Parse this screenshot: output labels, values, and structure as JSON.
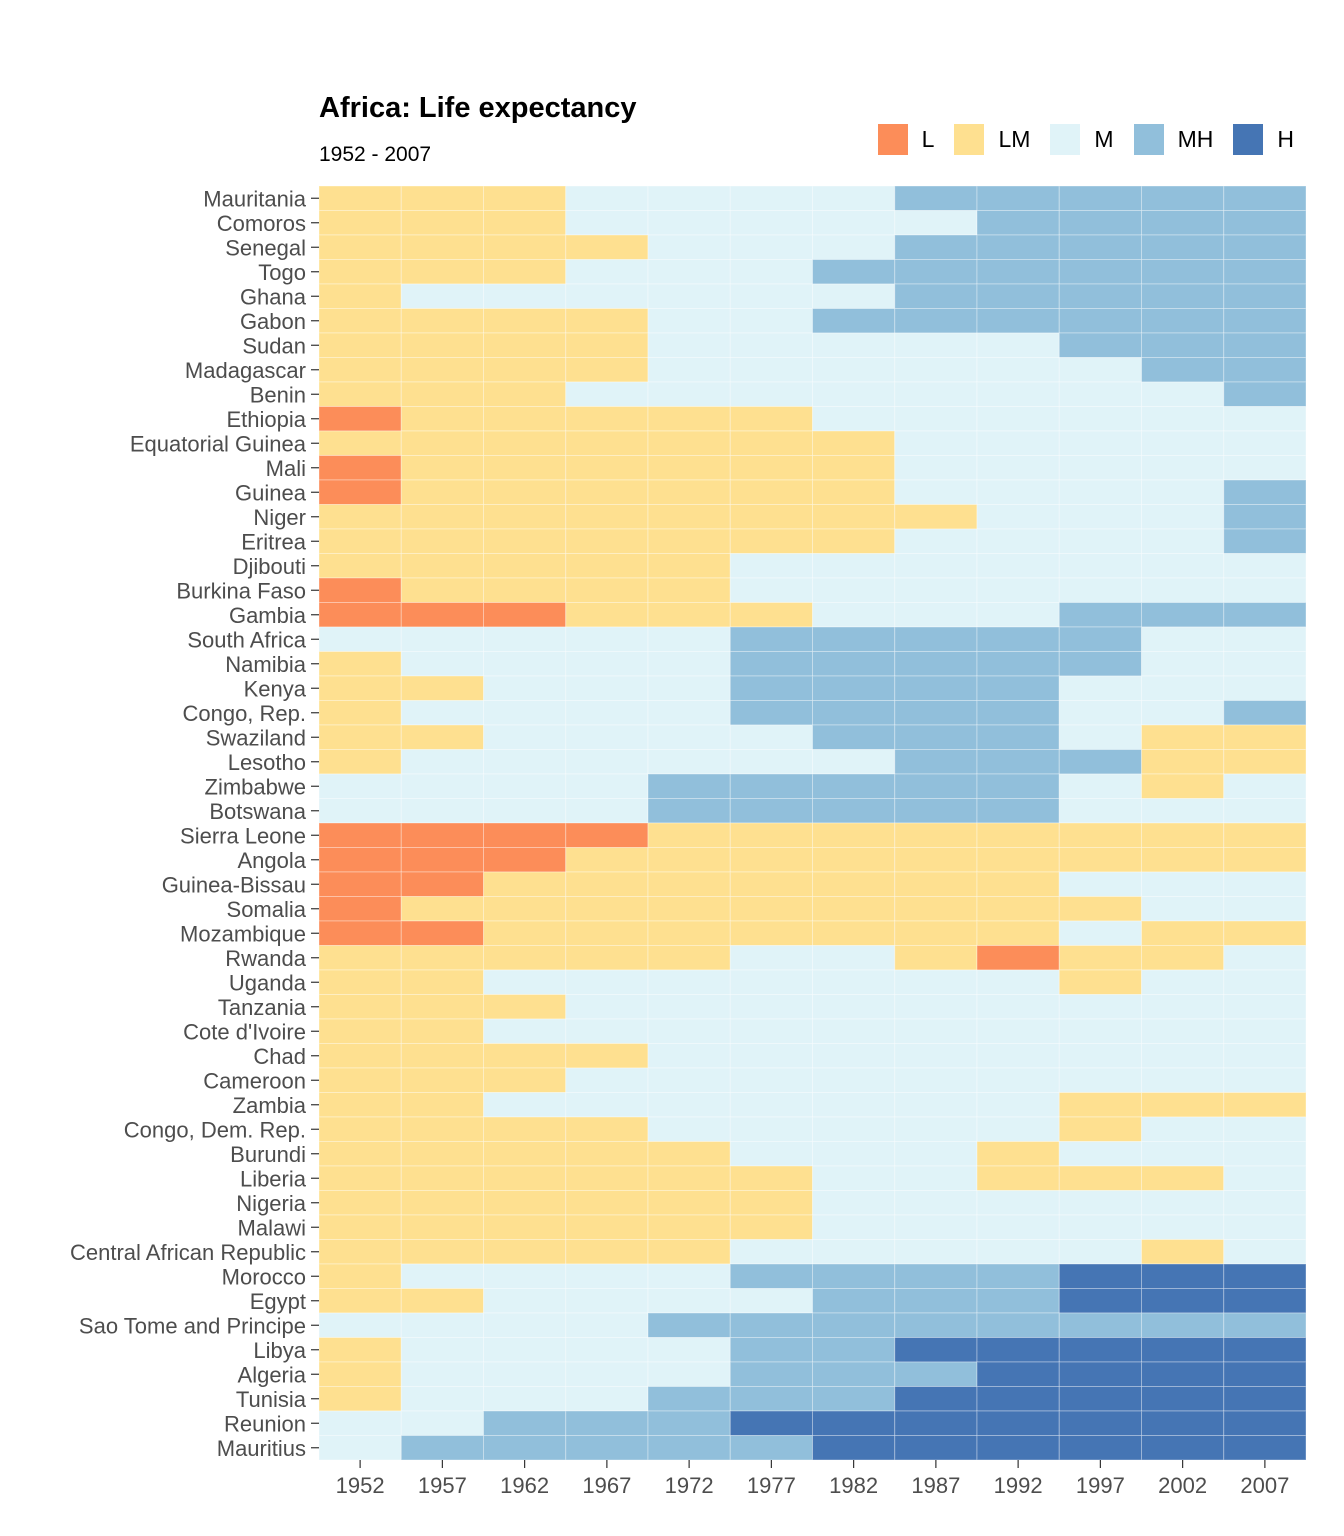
{
  "chart_data": {
    "type": "heatmap",
    "title": "Africa: Life expectancy",
    "subtitle": "1952 - 2007",
    "categories": [
      "L",
      "LM",
      "M",
      "MH",
      "H"
    ],
    "colors": {
      "L": "#fc8d59",
      "LM": "#fee090",
      "M": "#e0f3f8",
      "MH": "#91bfdb",
      "H": "#4575b4"
    },
    "legend_position": "top-right",
    "grid": true,
    "x": [
      "1952",
      "1957",
      "1962",
      "1967",
      "1972",
      "1977",
      "1982",
      "1987",
      "1992",
      "1997",
      "2002",
      "2007"
    ],
    "y": [
      "Mauritania",
      "Comoros",
      "Senegal",
      "Togo",
      "Ghana",
      "Gabon",
      "Sudan",
      "Madagascar",
      "Benin",
      "Ethiopia",
      "Equatorial Guinea",
      "Mali",
      "Guinea",
      "Niger",
      "Eritrea",
      "Djibouti",
      "Burkina Faso",
      "Gambia",
      "South Africa",
      "Namibia",
      "Kenya",
      "Congo, Rep.",
      "Swaziland",
      "Lesotho",
      "Zimbabwe",
      "Botswana",
      "Sierra Leone",
      "Angola",
      "Guinea-Bissau",
      "Somalia",
      "Mozambique",
      "Rwanda",
      "Uganda",
      "Tanzania",
      "Cote d'Ivoire",
      "Chad",
      "Cameroon",
      "Zambia",
      "Congo, Dem. Rep.",
      "Burundi",
      "Liberia",
      "Nigeria",
      "Malawi",
      "Central African Republic",
      "Morocco",
      "Egypt",
      "Sao Tome and Principe",
      "Libya",
      "Algeria",
      "Tunisia",
      "Reunion",
      "Mauritius"
    ],
    "values": [
      [
        "LM",
        "LM",
        "LM",
        "M",
        "M",
        "M",
        "M",
        "MH",
        "MH",
        "MH",
        "MH",
        "MH"
      ],
      [
        "LM",
        "LM",
        "LM",
        "M",
        "M",
        "M",
        "M",
        "M",
        "MH",
        "MH",
        "MH",
        "MH"
      ],
      [
        "LM",
        "LM",
        "LM",
        "LM",
        "M",
        "M",
        "M",
        "MH",
        "MH",
        "MH",
        "MH",
        "MH"
      ],
      [
        "LM",
        "LM",
        "LM",
        "M",
        "M",
        "M",
        "MH",
        "MH",
        "MH",
        "MH",
        "MH",
        "MH"
      ],
      [
        "LM",
        "M",
        "M",
        "M",
        "M",
        "M",
        "M",
        "MH",
        "MH",
        "MH",
        "MH",
        "MH"
      ],
      [
        "LM",
        "LM",
        "LM",
        "LM",
        "M",
        "M",
        "MH",
        "MH",
        "MH",
        "MH",
        "MH",
        "MH"
      ],
      [
        "LM",
        "LM",
        "LM",
        "LM",
        "M",
        "M",
        "M",
        "M",
        "M",
        "MH",
        "MH",
        "MH"
      ],
      [
        "LM",
        "LM",
        "LM",
        "LM",
        "M",
        "M",
        "M",
        "M",
        "M",
        "M",
        "MH",
        "MH"
      ],
      [
        "LM",
        "LM",
        "LM",
        "M",
        "M",
        "M",
        "M",
        "M",
        "M",
        "M",
        "M",
        "MH"
      ],
      [
        "L",
        "LM",
        "LM",
        "LM",
        "LM",
        "LM",
        "M",
        "M",
        "M",
        "M",
        "M",
        "M"
      ],
      [
        "LM",
        "LM",
        "LM",
        "LM",
        "LM",
        "LM",
        "LM",
        "M",
        "M",
        "M",
        "M",
        "M"
      ],
      [
        "L",
        "LM",
        "LM",
        "LM",
        "LM",
        "LM",
        "LM",
        "M",
        "M",
        "M",
        "M",
        "M"
      ],
      [
        "L",
        "LM",
        "LM",
        "LM",
        "LM",
        "LM",
        "LM",
        "M",
        "M",
        "M",
        "M",
        "MH"
      ],
      [
        "LM",
        "LM",
        "LM",
        "LM",
        "LM",
        "LM",
        "LM",
        "LM",
        "M",
        "M",
        "M",
        "MH"
      ],
      [
        "LM",
        "LM",
        "LM",
        "LM",
        "LM",
        "LM",
        "LM",
        "M",
        "M",
        "M",
        "M",
        "MH"
      ],
      [
        "LM",
        "LM",
        "LM",
        "LM",
        "LM",
        "M",
        "M",
        "M",
        "M",
        "M",
        "M",
        "M"
      ],
      [
        "L",
        "LM",
        "LM",
        "LM",
        "LM",
        "M",
        "M",
        "M",
        "M",
        "M",
        "M",
        "M"
      ],
      [
        "L",
        "L",
        "L",
        "LM",
        "LM",
        "LM",
        "M",
        "M",
        "M",
        "MH",
        "MH",
        "MH"
      ],
      [
        "M",
        "M",
        "M",
        "M",
        "M",
        "MH",
        "MH",
        "MH",
        "MH",
        "MH",
        "M",
        "M"
      ],
      [
        "LM",
        "M",
        "M",
        "M",
        "M",
        "MH",
        "MH",
        "MH",
        "MH",
        "MH",
        "M",
        "M"
      ],
      [
        "LM",
        "LM",
        "M",
        "M",
        "M",
        "MH",
        "MH",
        "MH",
        "MH",
        "M",
        "M",
        "M"
      ],
      [
        "LM",
        "M",
        "M",
        "M",
        "M",
        "MH",
        "MH",
        "MH",
        "MH",
        "M",
        "M",
        "MH"
      ],
      [
        "LM",
        "LM",
        "M",
        "M",
        "M",
        "M",
        "MH",
        "MH",
        "MH",
        "M",
        "LM",
        "LM"
      ],
      [
        "LM",
        "M",
        "M",
        "M",
        "M",
        "M",
        "M",
        "MH",
        "MH",
        "MH",
        "LM",
        "LM"
      ],
      [
        "M",
        "M",
        "M",
        "M",
        "MH",
        "MH",
        "MH",
        "MH",
        "MH",
        "M",
        "LM",
        "M"
      ],
      [
        "M",
        "M",
        "M",
        "M",
        "MH",
        "MH",
        "MH",
        "MH",
        "MH",
        "M",
        "M",
        "M"
      ],
      [
        "L",
        "L",
        "L",
        "L",
        "LM",
        "LM",
        "LM",
        "LM",
        "LM",
        "LM",
        "LM",
        "LM"
      ],
      [
        "L",
        "L",
        "L",
        "LM",
        "LM",
        "LM",
        "LM",
        "LM",
        "LM",
        "LM",
        "LM",
        "LM"
      ],
      [
        "L",
        "L",
        "LM",
        "LM",
        "LM",
        "LM",
        "LM",
        "LM",
        "LM",
        "M",
        "M",
        "M"
      ],
      [
        "L",
        "LM",
        "LM",
        "LM",
        "LM",
        "LM",
        "LM",
        "LM",
        "LM",
        "LM",
        "M",
        "M"
      ],
      [
        "L",
        "L",
        "LM",
        "LM",
        "LM",
        "LM",
        "LM",
        "LM",
        "LM",
        "M",
        "LM",
        "LM"
      ],
      [
        "LM",
        "LM",
        "LM",
        "LM",
        "LM",
        "M",
        "M",
        "LM",
        "L",
        "LM",
        "LM",
        "M"
      ],
      [
        "LM",
        "LM",
        "M",
        "M",
        "M",
        "M",
        "M",
        "M",
        "M",
        "LM",
        "M",
        "M"
      ],
      [
        "LM",
        "LM",
        "LM",
        "M",
        "M",
        "M",
        "M",
        "M",
        "M",
        "M",
        "M",
        "M"
      ],
      [
        "LM",
        "LM",
        "M",
        "M",
        "M",
        "M",
        "M",
        "M",
        "M",
        "M",
        "M",
        "M"
      ],
      [
        "LM",
        "LM",
        "LM",
        "LM",
        "M",
        "M",
        "M",
        "M",
        "M",
        "M",
        "M",
        "M"
      ],
      [
        "LM",
        "LM",
        "LM",
        "M",
        "M",
        "M",
        "M",
        "M",
        "M",
        "M",
        "M",
        "M"
      ],
      [
        "LM",
        "LM",
        "M",
        "M",
        "M",
        "M",
        "M",
        "M",
        "M",
        "LM",
        "LM",
        "LM"
      ],
      [
        "LM",
        "LM",
        "LM",
        "LM",
        "M",
        "M",
        "M",
        "M",
        "M",
        "LM",
        "M",
        "M"
      ],
      [
        "LM",
        "LM",
        "LM",
        "LM",
        "LM",
        "M",
        "M",
        "M",
        "LM",
        "M",
        "M",
        "M"
      ],
      [
        "LM",
        "LM",
        "LM",
        "LM",
        "LM",
        "LM",
        "M",
        "M",
        "LM",
        "LM",
        "LM",
        "M"
      ],
      [
        "LM",
        "LM",
        "LM",
        "LM",
        "LM",
        "LM",
        "M",
        "M",
        "M",
        "M",
        "M",
        "M"
      ],
      [
        "LM",
        "LM",
        "LM",
        "LM",
        "LM",
        "LM",
        "M",
        "M",
        "M",
        "M",
        "M",
        "M"
      ],
      [
        "LM",
        "LM",
        "LM",
        "LM",
        "LM",
        "M",
        "M",
        "M",
        "M",
        "M",
        "LM",
        "M"
      ],
      [
        "LM",
        "M",
        "M",
        "M",
        "M",
        "MH",
        "MH",
        "MH",
        "MH",
        "H",
        "H",
        "H"
      ],
      [
        "LM",
        "LM",
        "M",
        "M",
        "M",
        "M",
        "MH",
        "MH",
        "MH",
        "H",
        "H",
        "H"
      ],
      [
        "M",
        "M",
        "M",
        "M",
        "MH",
        "MH",
        "MH",
        "MH",
        "MH",
        "MH",
        "MH",
        "MH"
      ],
      [
        "LM",
        "M",
        "M",
        "M",
        "M",
        "MH",
        "MH",
        "H",
        "H",
        "H",
        "H",
        "H"
      ],
      [
        "LM",
        "M",
        "M",
        "M",
        "M",
        "MH",
        "MH",
        "MH",
        "H",
        "H",
        "H",
        "H"
      ],
      [
        "LM",
        "M",
        "M",
        "M",
        "MH",
        "MH",
        "MH",
        "H",
        "H",
        "H",
        "H",
        "H"
      ],
      [
        "M",
        "M",
        "MH",
        "MH",
        "MH",
        "H",
        "H",
        "H",
        "H",
        "H",
        "H",
        "H"
      ],
      [
        "M",
        "MH",
        "MH",
        "MH",
        "MH",
        "MH",
        "H",
        "H",
        "H",
        "H",
        "H",
        "H"
      ]
    ]
  }
}
